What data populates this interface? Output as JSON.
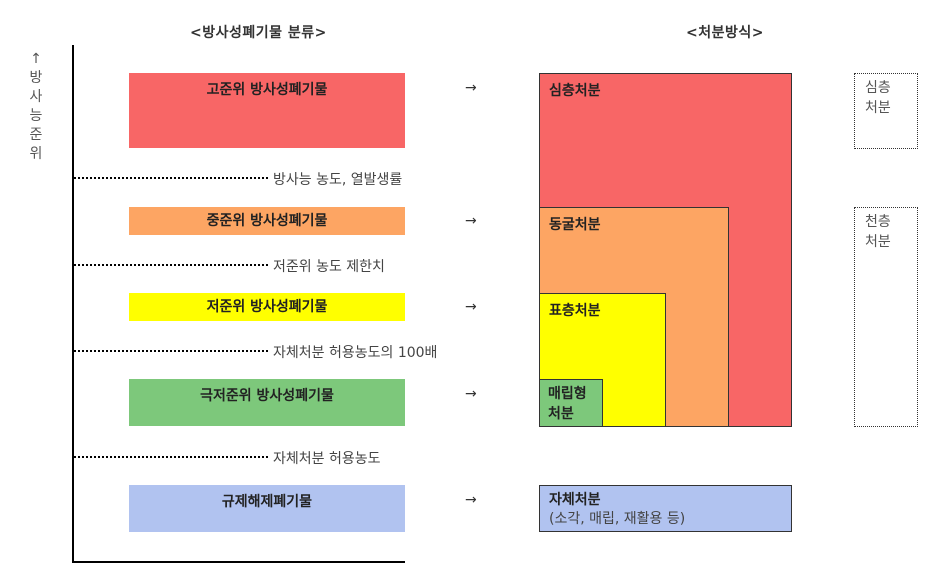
{
  "headers": {
    "classification": "<방사성폐기물 분류>",
    "disposal": "<처분방식>"
  },
  "axis": {
    "arrow": "↑",
    "label_chars": [
      "방",
      "사",
      "능",
      "준",
      "위"
    ]
  },
  "categories": [
    {
      "label": "고준위 방사성폐기물",
      "color": "#f86666"
    },
    {
      "label": "중준위 방사성폐기물",
      "color": "#fda563"
    },
    {
      "label": "저준위 방사성폐기물",
      "color": "#ffff00"
    },
    {
      "label": "극저준위 방사성폐기물",
      "color": "#7dc87b"
    },
    {
      "label": "규제해제폐기물",
      "color": "#b1c3f0"
    }
  ],
  "thresholds": [
    "방사능 농도, 열발생률",
    "저준위 농도 제한치",
    "자체처분 허용농도의 100배",
    "자체처분 허용농도"
  ],
  "arrow_symbol": "→",
  "disposal": {
    "deep": "심층처분",
    "cave": "동굴처분",
    "surface": "표층처분",
    "landfill_line1": "매립형",
    "landfill_line2": "처분",
    "self_title": "자체처분",
    "self_sub": "(소각, 매립, 재활용 등)"
  },
  "groups": {
    "deep_line1": "심층",
    "deep_line2": "처분",
    "shallow_line1": "천층",
    "shallow_line2": "처분"
  }
}
